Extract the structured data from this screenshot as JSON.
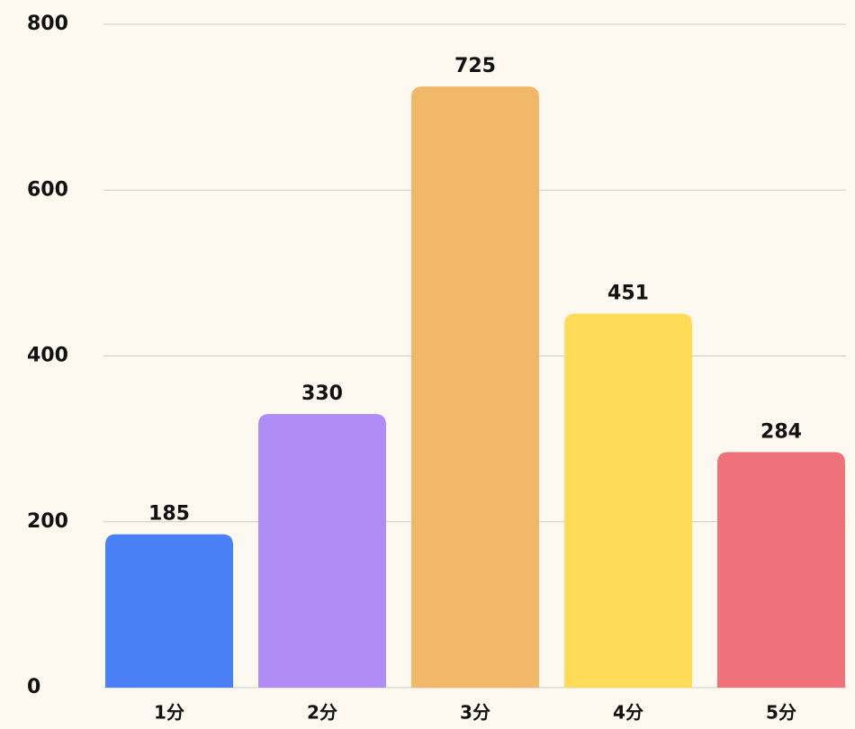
{
  "chart_data": {
    "type": "bar",
    "categories": [
      "1分",
      "2分",
      "3分",
      "4分",
      "5分"
    ],
    "values": [
      185,
      330,
      725,
      451,
      284
    ],
    "colors": [
      "#4a80f5",
      "#b08cf5",
      "#f2b86a",
      "#ffdc58",
      "#ef727b"
    ],
    "ylim": [
      0,
      800
    ],
    "yticks": [
      0,
      200,
      400,
      600,
      800
    ],
    "grid": true
  }
}
